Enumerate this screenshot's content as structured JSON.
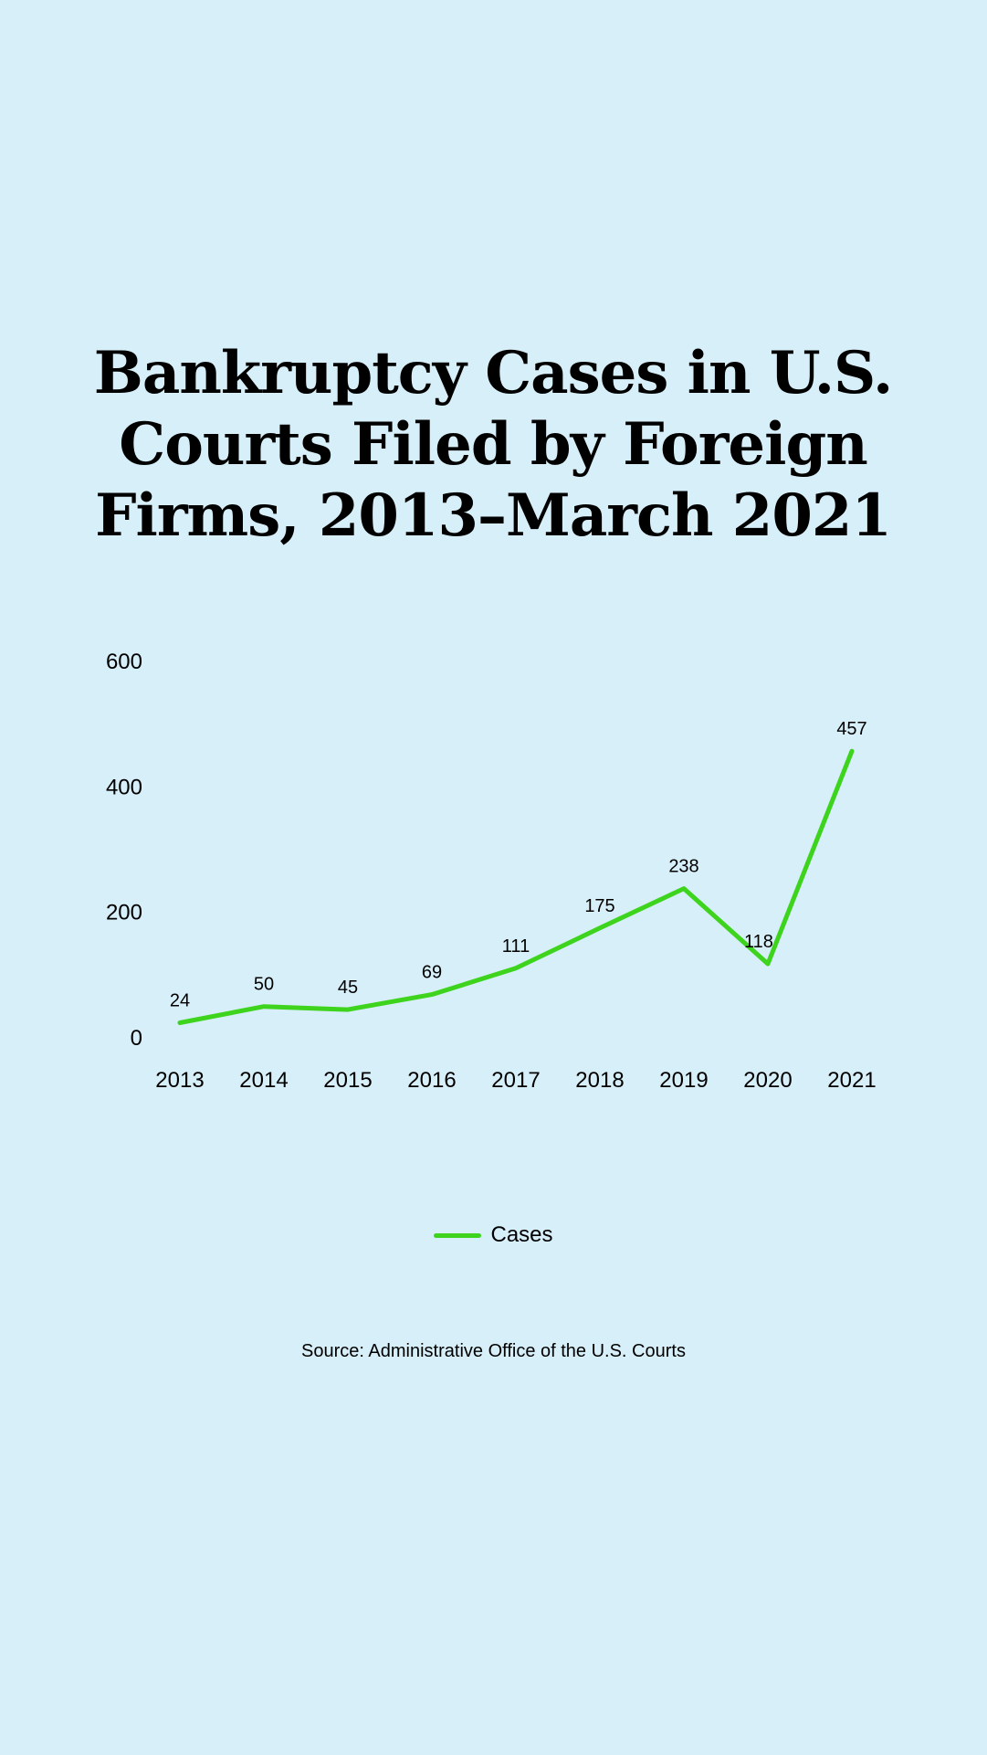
{
  "chart_data": {
    "type": "line",
    "title": "Bankruptcy Cases in U.S. Courts Filed by Foreign Firms, 2013–March 2021",
    "categories": [
      "2013",
      "2014",
      "2015",
      "2016",
      "2017",
      "2018",
      "2019",
      "2020",
      "2021"
    ],
    "series": [
      {
        "name": "Cases",
        "values": [
          24,
          50,
          45,
          69,
          111,
          175,
          238,
          118,
          457
        ],
        "color": "#3ed41e"
      }
    ],
    "y_ticks": [
      "0",
      "200",
      "400",
      "600"
    ],
    "ylim": [
      0,
      600
    ],
    "xlabel": "",
    "ylabel": "",
    "legend": "bottom-center",
    "grid": false
  },
  "source": "Source: Administrative Office of the U.S. Courts"
}
